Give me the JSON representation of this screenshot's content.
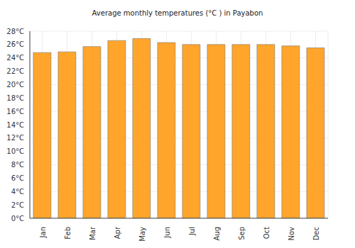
{
  "chart_data": {
    "type": "bar",
    "title": "Average monthly temperatures (°C ) in Payabon",
    "categories": [
      "Jan",
      "Feb",
      "Mar",
      "Apr",
      "May",
      "Jun",
      "Jul",
      "Aug",
      "Sep",
      "Oct",
      "Nov",
      "Dec"
    ],
    "values": [
      24.8,
      24.9,
      25.7,
      26.6,
      26.9,
      26.3,
      26.0,
      26.0,
      26.0,
      26.0,
      25.8,
      25.5
    ],
    "color": "#ffa52c",
    "ylim": [
      0,
      28
    ],
    "yticks": [
      {
        "value": 0,
        "label": "0°C"
      },
      {
        "value": 2,
        "label": "2°C"
      },
      {
        "value": 4,
        "label": "4°C"
      },
      {
        "value": 6,
        "label": "6°C"
      },
      {
        "value": 8,
        "label": "8°C"
      },
      {
        "value": 10,
        "label": "10°C"
      },
      {
        "value": 12,
        "label": "12°C"
      },
      {
        "value": 14,
        "label": "14°C"
      },
      {
        "value": 16,
        "label": "16°C"
      },
      {
        "value": 18,
        "label": "18°C"
      },
      {
        "value": 20,
        "label": "20°C"
      },
      {
        "value": 22,
        "label": "22°C"
      },
      {
        "value": 24,
        "label": "24°C"
      },
      {
        "value": 26,
        "label": "26°C"
      },
      {
        "value": 28,
        "label": "28°C"
      }
    ],
    "grid": true
  }
}
